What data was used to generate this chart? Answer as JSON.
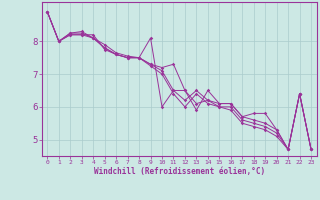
{
  "xlabel": "Windchill (Refroidissement éolien,°C)",
  "xlim": [
    -0.5,
    23.5
  ],
  "ylim": [
    4.5,
    9.2
  ],
  "yticks": [
    5,
    6,
    7,
    8
  ],
  "xticks": [
    0,
    1,
    2,
    3,
    4,
    5,
    6,
    7,
    8,
    9,
    10,
    11,
    12,
    13,
    14,
    15,
    16,
    17,
    18,
    19,
    20,
    21,
    22,
    23
  ],
  "bg_color": "#cce8e4",
  "line_color": "#993399",
  "grid_color": "#aacccc",
  "series": [
    [
      8.9,
      8.0,
      8.2,
      8.2,
      8.2,
      7.75,
      7.6,
      7.5,
      7.5,
      8.1,
      6.0,
      6.5,
      6.5,
      5.9,
      6.5,
      6.1,
      6.1,
      5.7,
      5.8,
      5.8,
      5.3,
      4.7,
      6.4,
      4.7
    ],
    [
      8.9,
      8.0,
      8.25,
      8.25,
      8.1,
      7.8,
      7.6,
      7.5,
      7.5,
      7.3,
      7.2,
      7.3,
      6.5,
      6.1,
      6.2,
      6.1,
      6.1,
      5.7,
      5.6,
      5.5,
      5.3,
      4.7,
      6.4,
      4.7
    ],
    [
      8.9,
      8.0,
      8.25,
      8.3,
      8.1,
      7.9,
      7.65,
      7.55,
      7.5,
      7.3,
      7.1,
      6.5,
      6.2,
      6.5,
      6.2,
      6.0,
      6.0,
      5.6,
      5.5,
      5.4,
      5.2,
      4.7,
      6.4,
      4.7
    ],
    [
      8.9,
      8.0,
      8.2,
      8.2,
      8.1,
      7.8,
      7.6,
      7.5,
      7.5,
      7.25,
      7.0,
      6.4,
      6.0,
      6.4,
      6.1,
      6.0,
      5.9,
      5.5,
      5.4,
      5.3,
      5.1,
      4.7,
      6.4,
      4.7
    ]
  ]
}
